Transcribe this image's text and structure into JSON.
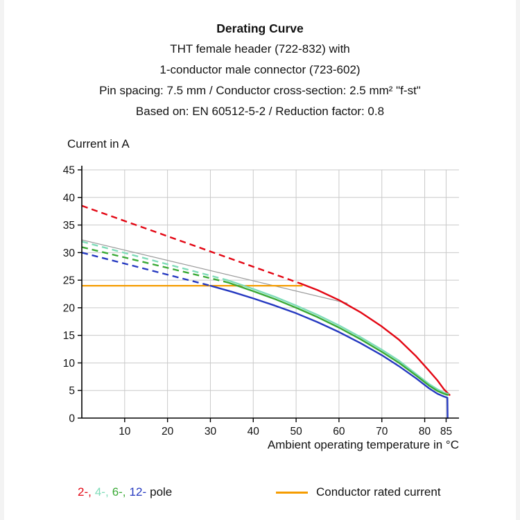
{
  "header": {
    "title": "Derating Curve",
    "subtitle_lines": [
      "THT female header (722-832) with",
      "1-conductor male connector (723-602)",
      "Pin spacing: 7.5 mm / Conductor cross-section: 2.5 mm² \"f-st\"",
      "Based on: EN 60512-5-2 / Reduction factor: 0.8"
    ]
  },
  "chart_data": {
    "type": "line",
    "title": "Derating Curve",
    "ylabel": "Current in A",
    "xlabel": "Ambient operating temperature in °C",
    "xlim": [
      0,
      88
    ],
    "ylim": [
      0,
      45
    ],
    "xticks": [
      10,
      20,
      30,
      40,
      50,
      60,
      70,
      80,
      85
    ],
    "yticks": [
      0,
      5,
      10,
      15,
      20,
      25,
      30,
      35,
      40,
      45
    ],
    "grid": true,
    "colors": {
      "grid": "#c9c9c9",
      "axis": "#000000"
    },
    "series": [
      {
        "name": "2-pole",
        "color": "#e30613",
        "dashed": [
          [
            0,
            38.5
          ],
          [
            51,
            24.4
          ]
        ],
        "solid": [
          [
            51,
            24.4
          ],
          [
            55,
            23.2
          ],
          [
            60,
            21.4
          ],
          [
            65,
            19.2
          ],
          [
            70,
            16.6
          ],
          [
            74,
            14.2
          ],
          [
            78,
            11.2
          ],
          [
            81,
            8.6
          ],
          [
            83,
            6.8
          ],
          [
            84.5,
            5.2
          ],
          [
            85.8,
            4.2
          ]
        ]
      },
      {
        "name": "4-pole",
        "color": "#7edcb8",
        "dashed": [
          [
            0,
            32.0
          ],
          [
            34,
            25.0
          ]
        ],
        "solid": [
          [
            34,
            25.0
          ],
          [
            40,
            23.4
          ],
          [
            45,
            22.0
          ],
          [
            50,
            20.4
          ],
          [
            55,
            18.7
          ],
          [
            60,
            16.8
          ],
          [
            65,
            14.7
          ],
          [
            70,
            12.4
          ],
          [
            74,
            10.4
          ],
          [
            78,
            8.0
          ],
          [
            81,
            6.2
          ],
          [
            83,
            5.2
          ],
          [
            84.5,
            4.6
          ],
          [
            85.5,
            4.4
          ]
        ]
      },
      {
        "name": "6-pole",
        "color": "#39a935",
        "dashed": [
          [
            0,
            31.0
          ],
          [
            34,
            24.6
          ]
        ],
        "solid": [
          [
            34,
            24.6
          ],
          [
            40,
            23.0
          ],
          [
            45,
            21.6
          ],
          [
            50,
            20.0
          ],
          [
            55,
            18.3
          ],
          [
            60,
            16.4
          ],
          [
            65,
            14.3
          ],
          [
            70,
            12.0
          ],
          [
            74,
            10.0
          ],
          [
            78,
            7.7
          ],
          [
            81,
            5.9
          ],
          [
            83,
            4.9
          ],
          [
            84.5,
            4.4
          ],
          [
            85.4,
            4.2
          ]
        ]
      },
      {
        "name": "12-pole",
        "color": "#2438c0",
        "dashed": [
          [
            0,
            30.0
          ],
          [
            30,
            24.0
          ]
        ],
        "solid": [
          [
            30,
            24.0
          ],
          [
            35,
            22.9
          ],
          [
            40,
            21.7
          ],
          [
            45,
            20.4
          ],
          [
            50,
            19.0
          ],
          [
            55,
            17.4
          ],
          [
            60,
            15.6
          ],
          [
            65,
            13.6
          ],
          [
            70,
            11.4
          ],
          [
            74,
            9.4
          ],
          [
            78,
            7.2
          ],
          [
            81,
            5.4
          ],
          [
            83,
            4.4
          ],
          [
            84.5,
            3.9
          ],
          [
            85.3,
            3.7
          ],
          [
            85.35,
            0
          ]
        ]
      }
    ],
    "rated_current": {
      "label": "Conductor rated current",
      "value": 24,
      "x_range": [
        0,
        51.5
      ],
      "color": "#f59c00"
    },
    "reference_line": {
      "from": [
        0,
        32.3
      ],
      "to": [
        62,
        20.8
      ],
      "color": "#9b9b9b"
    }
  },
  "legend": {
    "poles": [
      {
        "label": "2-,",
        "color": "#e30613"
      },
      {
        "label": "4-,",
        "color": "#7edcb8"
      },
      {
        "label": "6-,",
        "color": "#39a935"
      },
      {
        "label": "12-",
        "color": "#2438c0"
      }
    ],
    "pole_word": "pole",
    "rated_label": "Conductor rated current"
  }
}
